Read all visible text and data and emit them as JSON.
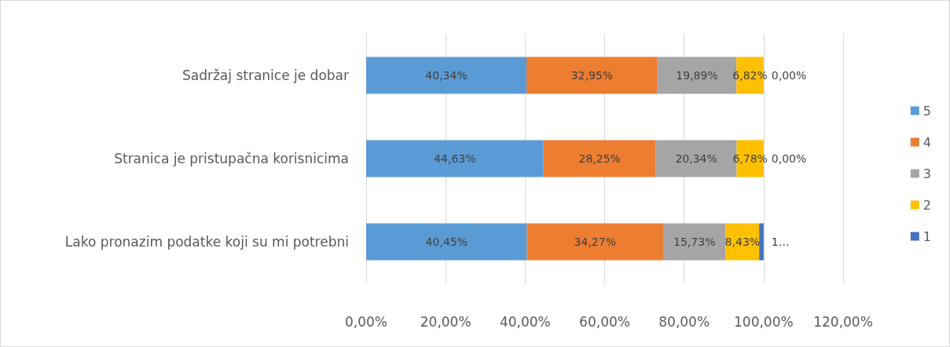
{
  "chart_data": {
    "type": "bar",
    "orientation": "horizontal",
    "stacked": true,
    "categories": [
      "Sadržaj stranice je dobar",
      "Stranica je pristupačna korisnicima",
      "Lako pronazim podatke koji su mi potrebni"
    ],
    "series": [
      {
        "name": "5",
        "color": "#5b9bd5",
        "values": [
          40.34,
          44.63,
          40.45
        ],
        "value_labels": [
          "40,34%",
          "44,63%",
          "40,45%"
        ]
      },
      {
        "name": "4",
        "color": "#ed7d31",
        "values": [
          32.95,
          28.25,
          34.27
        ],
        "value_labels": [
          "32,95%",
          "28,25%",
          "34,27%"
        ]
      },
      {
        "name": "3",
        "color": "#a5a5a5",
        "values": [
          19.89,
          20.34,
          15.73
        ],
        "value_labels": [
          "19,89%",
          "20,34%",
          "15,73%"
        ]
      },
      {
        "name": "2",
        "color": "#ffc000",
        "values": [
          6.82,
          6.78,
          8.43
        ],
        "value_labels": [
          "6,82%",
          "6,78%",
          "8,43%"
        ]
      },
      {
        "name": "1",
        "color": "#4472c4",
        "values": [
          0,
          0,
          1.12
        ],
        "value_labels": [
          "0,00%",
          "0,00%",
          "1…"
        ]
      }
    ],
    "xlim": [
      0,
      120
    ],
    "xticks": [
      {
        "value": 0,
        "label": "0,00%"
      },
      {
        "value": 20,
        "label": "20,00%"
      },
      {
        "value": 40,
        "label": "40,00%"
      },
      {
        "value": 60,
        "label": "60,00%"
      },
      {
        "value": 80,
        "label": "80,00%"
      },
      {
        "value": 100,
        "label": "100,00%"
      },
      {
        "value": 120,
        "label": "120,00%"
      }
    ],
    "grid": "x",
    "legend": "right"
  }
}
